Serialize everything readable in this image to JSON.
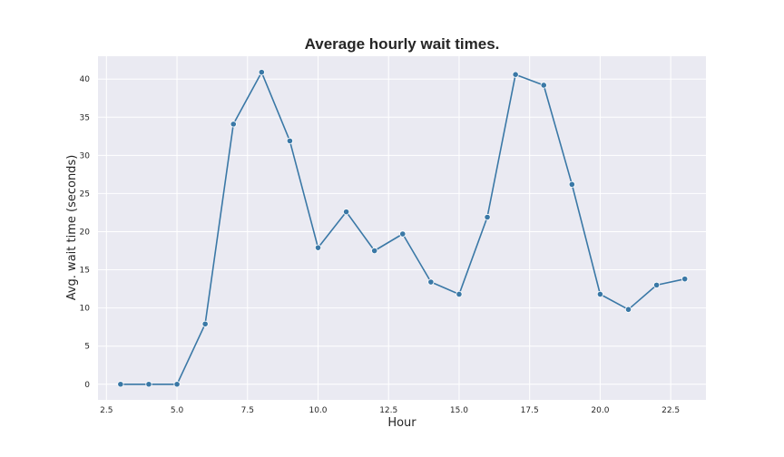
{
  "chart_data": {
    "type": "line",
    "title": "Average hourly wait times.",
    "xlabel": "Hour",
    "ylabel": "Avg. wait time (seconds)",
    "xlim": [
      2.2,
      23.75
    ],
    "ylim": [
      -2.05,
      43.0
    ],
    "xticks": [
      "2.5",
      "5.0",
      "7.5",
      "10.0",
      "12.5",
      "15.0",
      "17.5",
      "20.0",
      "22.5"
    ],
    "yticks": [
      "0",
      "5",
      "10",
      "15",
      "20",
      "25",
      "30",
      "35",
      "40"
    ],
    "grid": true,
    "series": [
      {
        "color": "#3a78a6",
        "x": [
          3,
          4,
          5,
          6,
          7,
          8,
          9,
          10,
          11,
          12,
          13,
          14,
          15,
          16,
          17,
          18,
          19,
          20,
          21,
          22,
          23
        ],
        "y": [
          0,
          0,
          0,
          7.9,
          34.1,
          40.9,
          31.9,
          17.9,
          22.6,
          17.5,
          19.7,
          13.4,
          11.8,
          21.9,
          40.6,
          39.2,
          26.2,
          11.8,
          9.8,
          13.0,
          13.8
        ]
      }
    ]
  }
}
